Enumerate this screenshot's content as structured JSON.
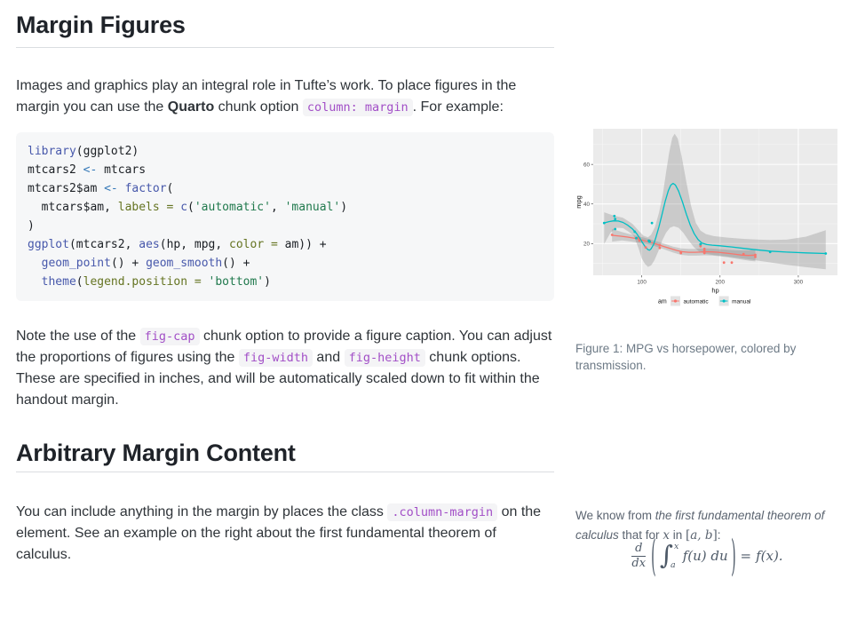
{
  "colors": {
    "inline_code": "#A24FC7",
    "code_function": "#4758AB",
    "code_operator": "#3579B8",
    "code_param": "#657422",
    "code_string": "#20794D",
    "series_automatic": "#F8766D",
    "series_manual": "#00BFC4",
    "caption_text": "#6D7A86"
  },
  "margin_figures": {
    "heading": "Margin Figures",
    "para": [
      [
        "t",
        "Images and graphics play an integral role in Tufte’s work. To place figures in the margin you can use the "
      ],
      [
        "b",
        "Quarto"
      ],
      [
        "t",
        " chunk option "
      ],
      [
        "c",
        "column: margin"
      ],
      [
        "t",
        ". For example:"
      ]
    ]
  },
  "code_block": {
    "lines": [
      [
        [
          "fu",
          "library"
        ],
        [
          "d",
          "("
        ],
        [
          "d",
          "ggplot2"
        ],
        [
          "d",
          ")"
        ]
      ],
      [
        [
          "d",
          "mtcars2 "
        ],
        [
          "op",
          "<-"
        ],
        [
          "d",
          " mtcars"
        ]
      ],
      [
        [
          "d",
          "mtcars2$am "
        ],
        [
          "op",
          "<-"
        ],
        [
          "d",
          " "
        ],
        [
          "fu",
          "factor"
        ],
        [
          "d",
          "("
        ]
      ],
      [
        [
          "d",
          "  mtcars$am, "
        ],
        [
          "at",
          "labels"
        ],
        [
          "d",
          " "
        ],
        [
          "at",
          "="
        ],
        [
          "d",
          " "
        ],
        [
          "fu",
          "c"
        ],
        [
          "d",
          "("
        ],
        [
          "st",
          "'automatic'"
        ],
        [
          "d",
          ", "
        ],
        [
          "st",
          "'manual'"
        ],
        [
          "d",
          ")"
        ]
      ],
      [
        [
          "d",
          ")"
        ]
      ],
      [
        [
          "fu",
          "ggplot"
        ],
        [
          "d",
          "("
        ],
        [
          "d",
          "mtcars2, "
        ],
        [
          "fu",
          "aes"
        ],
        [
          "d",
          "("
        ],
        [
          "d",
          "hp, mpg, "
        ],
        [
          "at",
          "color"
        ],
        [
          "d",
          " "
        ],
        [
          "at",
          "="
        ],
        [
          "d",
          " "
        ],
        [
          "d",
          "am"
        ],
        [
          "d",
          "))"
        ],
        [
          "d",
          " +"
        ]
      ],
      [
        [
          "d",
          "  "
        ],
        [
          "fu",
          "geom_point"
        ],
        [
          "d",
          "()"
        ],
        [
          "d",
          " + "
        ],
        [
          "fu",
          "geom_smooth"
        ],
        [
          "d",
          "()"
        ],
        [
          "d",
          " +"
        ]
      ],
      [
        [
          "d",
          "  "
        ],
        [
          "fu",
          "theme"
        ],
        [
          "d",
          "("
        ],
        [
          "at",
          "legend.position"
        ],
        [
          "d",
          " "
        ],
        [
          "at",
          "="
        ],
        [
          "d",
          " "
        ],
        [
          "st",
          "'bottom'"
        ],
        [
          "d",
          ")"
        ]
      ]
    ]
  },
  "after_code_para": [
    [
      "t",
      "Note the use of the "
    ],
    [
      "c",
      "fig-cap"
    ],
    [
      "t",
      " chunk option to provide a figure caption. You can adjust the proportions of figures using the "
    ],
    [
      "c",
      "fig-width"
    ],
    [
      "t",
      " and "
    ],
    [
      "c",
      "fig-height"
    ],
    [
      "t",
      " chunk options. These are specified in inches, and will be automatically scaled down to fit within the handout margin."
    ]
  ],
  "arbitrary_margin_content": {
    "heading": "Arbitrary Margin Content",
    "para": [
      [
        "t",
        "You can include anything in the margin by places the class "
      ],
      [
        "c",
        ".column-margin"
      ],
      [
        "t",
        " on the element. See an example on the right about the first fundamental theorem of calculus."
      ]
    ]
  },
  "margin_figure": {
    "caption": "Figure 1: MPG vs horsepower, colored by transmission.",
    "chart_data": {
      "type": "scatter",
      "xlabel": "hp",
      "ylabel": "mpg",
      "xlim": [
        38,
        350
      ],
      "ylim": [
        4,
        78
      ],
      "xticks": [
        100,
        200,
        300
      ],
      "yticks": [
        20,
        40,
        60
      ],
      "minor_x": [
        50,
        150,
        250
      ],
      "minor_y": [
        10,
        30,
        50,
        70
      ],
      "panel_bg": "#EBEBEB",
      "grid": "white",
      "ribbon_color": "rgba(125,125,125,0.30)",
      "legend": {
        "title": "am",
        "position": "bottom",
        "entries": [
          {
            "label": "automatic",
            "color": "#F8766D"
          },
          {
            "label": "manual",
            "color": "#00BFC4"
          }
        ]
      },
      "series": [
        {
          "name": "automatic",
          "color": "#F8766D",
          "points": [
            [
              110,
              21.4
            ],
            [
              175,
              18.7
            ],
            [
              105,
              18.1
            ],
            [
              245,
              14.3
            ],
            [
              62,
              24.4
            ],
            [
              95,
              22.8
            ],
            [
              123,
              19.2
            ],
            [
              123,
              17.8
            ],
            [
              180,
              16.4
            ],
            [
              180,
              17.3
            ],
            [
              180,
              15.2
            ],
            [
              205,
              10.4
            ],
            [
              215,
              10.4
            ],
            [
              230,
              14.7
            ],
            [
              97,
              21.5
            ],
            [
              150,
              15.5
            ],
            [
              150,
              15.2
            ],
            [
              245,
              13.3
            ],
            [
              175,
              19.2
            ]
          ],
          "smooth": [
            [
              62,
              24.2
            ],
            [
              72,
              23.8
            ],
            [
              82,
              23.3
            ],
            [
              92,
              22.6
            ],
            [
              100,
              21.8
            ],
            [
              108,
              21.0
            ],
            [
              115,
              20.2
            ],
            [
              123,
              19.2
            ],
            [
              130,
              18.3
            ],
            [
              138,
              17.3
            ],
            [
              145,
              16.5
            ],
            [
              152,
              15.9
            ],
            [
              160,
              15.6
            ],
            [
              168,
              15.6
            ],
            [
              175,
              15.7
            ],
            [
              182,
              15.9
            ],
            [
              190,
              15.8
            ],
            [
              198,
              15.6
            ],
            [
              205,
              15.3
            ],
            [
              212,
              15.0
            ],
            [
              220,
              14.6
            ],
            [
              228,
              14.2
            ],
            [
              236,
              14.0
            ],
            [
              245,
              14.2
            ]
          ],
          "ribbon_upper": [
            [
              62,
              27.4
            ],
            [
              75,
              25.8
            ],
            [
              88,
              24.4
            ],
            [
              100,
              23.3
            ],
            [
              110,
              22.3
            ],
            [
              120,
              21.0
            ],
            [
              130,
              19.8
            ],
            [
              140,
              18.5
            ],
            [
              150,
              17.6
            ],
            [
              160,
              17.3
            ],
            [
              170,
              17.3
            ],
            [
              180,
              17.6
            ],
            [
              190,
              17.5
            ],
            [
              200,
              17.2
            ],
            [
              210,
              16.9
            ],
            [
              220,
              16.6
            ],
            [
              230,
              16.5
            ],
            [
              238,
              16.7
            ],
            [
              245,
              17.3
            ]
          ],
          "ribbon_lower": [
            [
              62,
              21.0
            ],
            [
              75,
              21.6
            ],
            [
              88,
              20.9
            ],
            [
              100,
              20.2
            ],
            [
              110,
              19.5
            ],
            [
              120,
              18.3
            ],
            [
              130,
              16.9
            ],
            [
              140,
              15.5
            ],
            [
              150,
              14.3
            ],
            [
              160,
              13.9
            ],
            [
              170,
              13.9
            ],
            [
              180,
              14.1
            ],
            [
              190,
              14.0
            ],
            [
              200,
              13.6
            ],
            [
              210,
              13.1
            ],
            [
              220,
              12.4
            ],
            [
              230,
              11.8
            ],
            [
              238,
              11.3
            ],
            [
              245,
              11.0
            ]
          ]
        },
        {
          "name": "manual",
          "color": "#00BFC4",
          "points": [
            [
              110,
              21.0
            ],
            [
              110,
              21.0
            ],
            [
              93,
              22.8
            ],
            [
              66,
              32.4
            ],
            [
              52,
              30.4
            ],
            [
              65,
              33.9
            ],
            [
              66,
              27.3
            ],
            [
              91,
              26.0
            ],
            [
              113,
              30.4
            ],
            [
              264,
              15.8
            ],
            [
              175,
              19.7
            ],
            [
              335,
              15.0
            ],
            [
              109,
              21.4
            ]
          ],
          "smooth": [
            [
              52,
              30.4
            ],
            [
              58,
              31.1
            ],
            [
              64,
              31.5
            ],
            [
              70,
              31.4
            ],
            [
              76,
              30.7
            ],
            [
              82,
              29.3
            ],
            [
              88,
              27.4
            ],
            [
              93,
              25.3
            ],
            [
              98,
              22.4
            ],
            [
              102,
              19.8
            ],
            [
              105,
              18.0
            ],
            [
              108,
              16.9
            ],
            [
              110,
              16.7
            ],
            [
              112,
              17.4
            ],
            [
              115,
              19.5
            ],
            [
              118,
              23.0
            ],
            [
              122,
              28.5
            ],
            [
              126,
              35.0
            ],
            [
              130,
              41.5
            ],
            [
              134,
              46.8
            ],
            [
              137,
              49.5
            ],
            [
              140,
              50.4
            ],
            [
              143,
              49.6
            ],
            [
              147,
              46.5
            ],
            [
              152,
              41.0
            ],
            [
              157,
              34.8
            ],
            [
              162,
              29.3
            ],
            [
              167,
              25.0
            ],
            [
              172,
              22.0
            ],
            [
              177,
              20.3
            ],
            [
              183,
              19.5
            ],
            [
              190,
              19.2
            ],
            [
              200,
              18.9
            ],
            [
              215,
              18.3
            ],
            [
              230,
              17.6
            ],
            [
              245,
              16.9
            ],
            [
              264,
              16.2
            ],
            [
              285,
              15.7
            ],
            [
              310,
              15.3
            ],
            [
              335,
              15.0
            ]
          ],
          "ribbon_upper": [
            [
              52,
              35.8
            ],
            [
              64,
              34.2
            ],
            [
              76,
              33.0
            ],
            [
              88,
              30.0
            ],
            [
              96,
              26.5
            ],
            [
              102,
              24.0
            ],
            [
              108,
              23.2
            ],
            [
              112,
              24.5
            ],
            [
              117,
              28.5
            ],
            [
              122,
              35.5
            ],
            [
              127,
              45.0
            ],
            [
              131,
              56.0
            ],
            [
              135,
              66.0
            ],
            [
              139,
              73.5
            ],
            [
              142,
              75.5
            ],
            [
              146,
              73.0
            ],
            [
              151,
              64.0
            ],
            [
              157,
              51.0
            ],
            [
              163,
              39.0
            ],
            [
              169,
              30.5
            ],
            [
              175,
              26.5
            ],
            [
              182,
              24.8
            ],
            [
              192,
              23.8
            ],
            [
              210,
              23.0
            ],
            [
              230,
              22.4
            ],
            [
              250,
              22.0
            ],
            [
              264,
              21.8
            ],
            [
              285,
              22.0
            ],
            [
              310,
              23.5
            ],
            [
              335,
              26.8
            ]
          ],
          "ribbon_lower": [
            [
              52,
              19.8
            ],
            [
              60,
              25.5
            ],
            [
              68,
              28.0
            ],
            [
              76,
              27.8
            ],
            [
              84,
              25.8
            ],
            [
              90,
              23.8
            ],
            [
              96,
              17.5
            ],
            [
              100,
              12.5
            ],
            [
              104,
              9.8
            ],
            [
              108,
              8.2
            ],
            [
              112,
              9.0
            ],
            [
              116,
              11.5
            ],
            [
              121,
              16.0
            ],
            [
              126,
              21.5
            ],
            [
              131,
              25.5
            ],
            [
              136,
              28.0
            ],
            [
              141,
              28.8
            ],
            [
              147,
              28.0
            ],
            [
              153,
              25.5
            ],
            [
              160,
              21.5
            ],
            [
              167,
              18.0
            ],
            [
              174,
              15.8
            ],
            [
              182,
              14.8
            ],
            [
              192,
              14.2
            ],
            [
              210,
              13.4
            ],
            [
              230,
              12.4
            ],
            [
              250,
              11.3
            ],
            [
              264,
              10.5
            ],
            [
              285,
              9.3
            ],
            [
              310,
              8.1
            ],
            [
              335,
              7.0
            ]
          ]
        }
      ]
    }
  },
  "margin_note": {
    "intro": [
      [
        "t",
        "We know from "
      ],
      [
        "i",
        "the first fundamental theorem of calculus"
      ],
      [
        "t",
        " that for "
      ],
      [
        "m",
        "x"
      ],
      [
        "t",
        " in "
      ],
      [
        "mr",
        "["
      ],
      [
        "m",
        "a, b"
      ],
      [
        "mr",
        "]"
      ],
      [
        "t",
        ":"
      ]
    ],
    "formula": {
      "frac_num": "d",
      "frac_den": "dx",
      "lparen": "(",
      "integral": "∫",
      "sup": "x",
      "sub": "a",
      "integrand": "f(u) du",
      "eq": "=",
      "rhs": "f(x)."
    }
  }
}
